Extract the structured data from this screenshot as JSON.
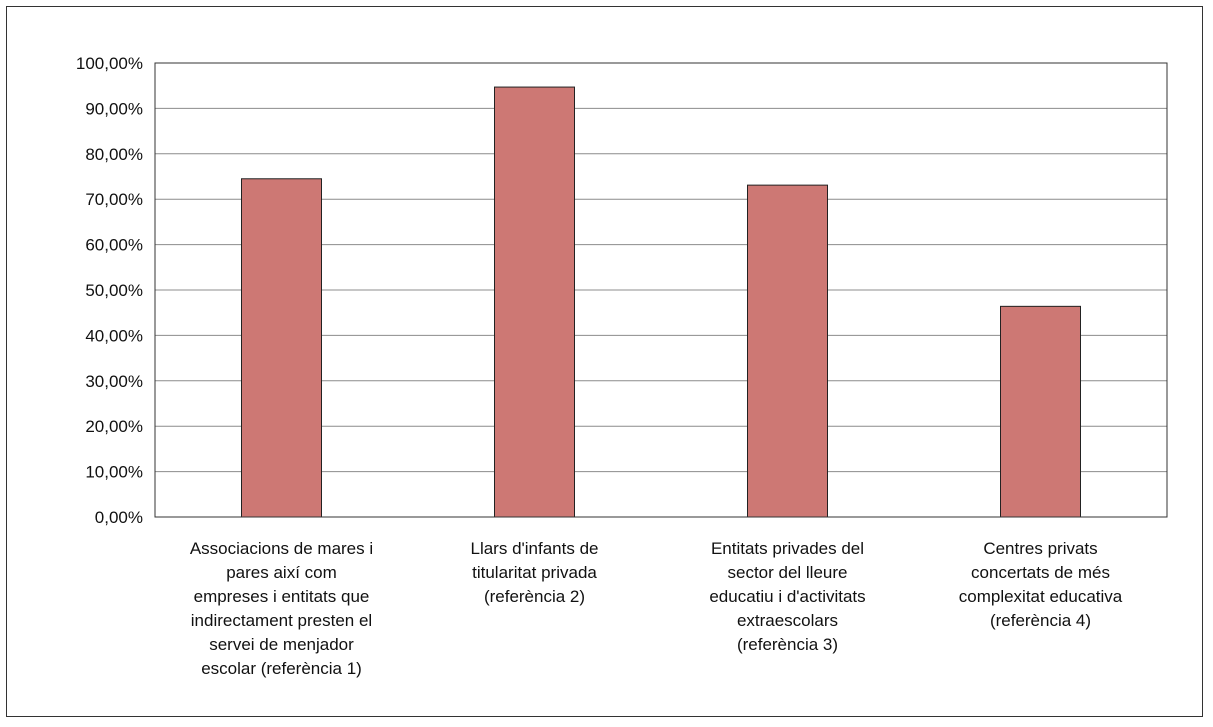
{
  "chart_data": {
    "type": "bar",
    "categories": [
      "Associacions de mares i pares així com empreses i entitats que indirectament presten el servei de menjador escolar (referència 1)",
      "Llars d'infants de titularitat privada (referència 2)",
      "Entitats privades del sector del lleure educatiu i d'activitats extraescolars (referència 3)",
      "Centres privats concertats de més complexitat educativa (referència 4)"
    ],
    "values": [
      74.5,
      94.7,
      73.1,
      46.4
    ],
    "ylim": [
      0,
      100
    ],
    "y_ticks": [
      "0,00%",
      "10,00%",
      "20,00%",
      "30,00%",
      "40,00%",
      "50,00%",
      "60,00%",
      "70,00%",
      "80,00%",
      "90,00%",
      "100,00%"
    ],
    "grid": true,
    "bar_color": "#cd7874",
    "bar_stroke": "#222222",
    "grid_color": "#8c8c8c"
  }
}
